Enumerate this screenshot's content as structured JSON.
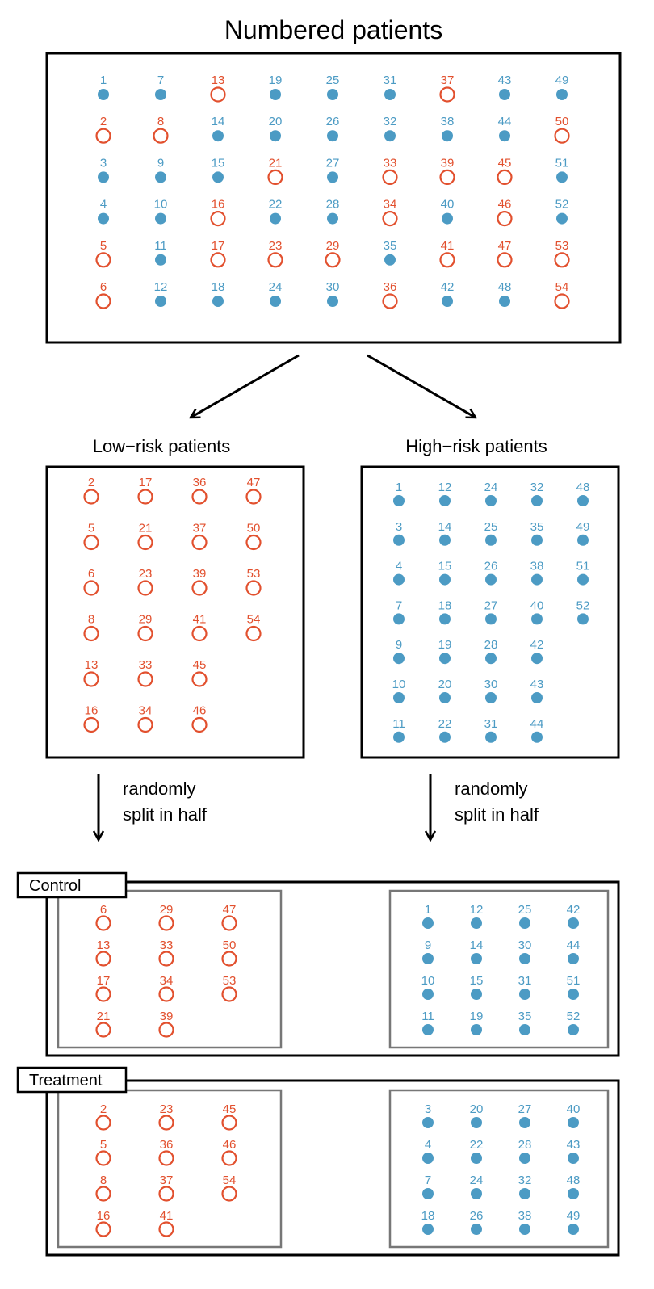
{
  "title": "Numbered patients",
  "low_risk_title": "Low−risk patients",
  "high_risk_title": "High−risk patients",
  "split_note_line1": "randomly",
  "split_note_line2": "split in half",
  "control_label": "Control",
  "treatment_label": "Treatment",
  "colors": {
    "high_risk": "#4c9bc4",
    "low_risk": "#e2502e",
    "frame": "#000000",
    "inner_frame": "#777777"
  },
  "low_risk_ids": [
    2,
    5,
    6,
    8,
    13,
    16,
    17,
    21,
    23,
    29,
    33,
    34,
    36,
    37,
    39,
    41,
    45,
    46,
    47,
    50,
    53,
    54
  ],
  "numbered_columns": [
    [
      1,
      2,
      3,
      4,
      5,
      6
    ],
    [
      7,
      8,
      9,
      10,
      11,
      12
    ],
    [
      13,
      14,
      15,
      16,
      17,
      18
    ],
    [
      19,
      20,
      21,
      22,
      23,
      24
    ],
    [
      25,
      26,
      27,
      28,
      29,
      30
    ],
    [
      31,
      32,
      33,
      34,
      35,
      36
    ],
    [
      37,
      38,
      39,
      40,
      41,
      42
    ],
    [
      43,
      44,
      45,
      46,
      47,
      48
    ],
    [
      49,
      50,
      51,
      52,
      53,
      54
    ]
  ],
  "low_risk_columns": [
    [
      2,
      5,
      6,
      8,
      13,
      16
    ],
    [
      17,
      21,
      23,
      29,
      33,
      34
    ],
    [
      36,
      37,
      39,
      41,
      45,
      46
    ],
    [
      47,
      50,
      53,
      54
    ]
  ],
  "high_risk_columns": [
    [
      1,
      3,
      4,
      7,
      9,
      10,
      11
    ],
    [
      12,
      14,
      15,
      18,
      19,
      20,
      22
    ],
    [
      24,
      25,
      26,
      27,
      28,
      30,
      31
    ],
    [
      32,
      35,
      38,
      40,
      42,
      43,
      44
    ],
    [
      48,
      49,
      51,
      52
    ]
  ],
  "control_low_columns": [
    [
      6,
      13,
      17,
      21
    ],
    [
      29,
      33,
      34,
      39
    ],
    [
      47,
      50,
      53
    ]
  ],
  "control_high_columns": [
    [
      1,
      9,
      10,
      11
    ],
    [
      12,
      14,
      15,
      19
    ],
    [
      25,
      30,
      31,
      35
    ],
    [
      42,
      44,
      51,
      52
    ]
  ],
  "treatment_low_columns": [
    [
      2,
      5,
      8,
      16
    ],
    [
      23,
      36,
      37,
      41
    ],
    [
      45,
      46,
      54
    ]
  ],
  "treatment_high_columns": [
    [
      3,
      4,
      7,
      18
    ],
    [
      20,
      22,
      24,
      26
    ],
    [
      27,
      28,
      32,
      38
    ],
    [
      40,
      43,
      48,
      49
    ]
  ]
}
